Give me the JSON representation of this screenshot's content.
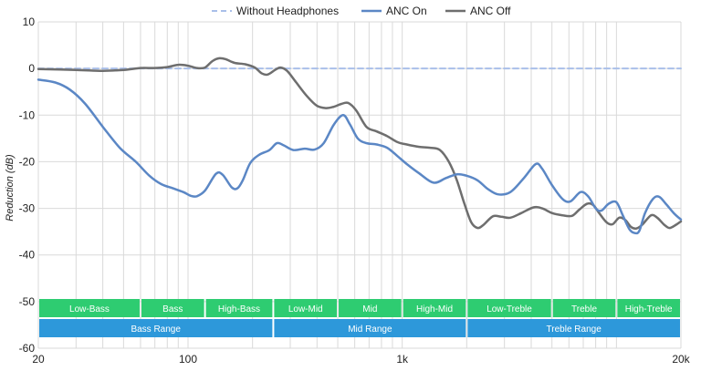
{
  "colors": {
    "without_headphones": "#a9bfe9",
    "anc_on": "#5b87c5",
    "anc_off": "#6e6e6e",
    "band_green": "#2ecc71",
    "band_blue": "#2d98da",
    "grid": "#d9d9d9",
    "band_text": "#ffffff"
  },
  "chart_data": {
    "type": "line",
    "title": "",
    "xlabel": "",
    "ylabel": "Reduction (dB)",
    "xscale": "log",
    "xlim": [
      20,
      20000
    ],
    "ylim": [
      -60,
      10
    ],
    "y_ticks": [
      10,
      0,
      -10,
      -20,
      -30,
      -40,
      -50,
      -60
    ],
    "x_tick_labels": [
      {
        "value": 20,
        "label": "20"
      },
      {
        "value": 100,
        "label": "100"
      },
      {
        "value": 1000,
        "label": "1k"
      },
      {
        "value": 20000,
        "label": "20k"
      }
    ],
    "grid": true,
    "legend_position": "top",
    "legend": [
      "Without Headphones",
      "ANC On",
      "ANC Off"
    ],
    "series": [
      {
        "name": "Without Headphones",
        "style": "dashed",
        "points": [
          [
            20,
            0
          ],
          [
            20000,
            0
          ]
        ]
      },
      {
        "name": "ANC On",
        "style": "solid",
        "points": [
          [
            20,
            -2.4
          ],
          [
            24,
            -3
          ],
          [
            28,
            -4.5
          ],
          [
            33,
            -7.5
          ],
          [
            40,
            -12.5
          ],
          [
            48,
            -17
          ],
          [
            57,
            -20
          ],
          [
            66,
            -23
          ],
          [
            75,
            -24.8
          ],
          [
            85,
            -25.7
          ],
          [
            95,
            -26.5
          ],
          [
            103,
            -27.3
          ],
          [
            110,
            -27.4
          ],
          [
            120,
            -26.2
          ],
          [
            135,
            -22.6
          ],
          [
            145,
            -22.8
          ],
          [
            160,
            -25.5
          ],
          [
            170,
            -25.7
          ],
          [
            180,
            -24
          ],
          [
            195,
            -20.3
          ],
          [
            215,
            -18.5
          ],
          [
            240,
            -17.5
          ],
          [
            260,
            -16
          ],
          [
            280,
            -16.5
          ],
          [
            310,
            -17.5
          ],
          [
            350,
            -17.2
          ],
          [
            390,
            -17.4
          ],
          [
            430,
            -16
          ],
          [
            480,
            -12
          ],
          [
            530,
            -10
          ],
          [
            570,
            -12
          ],
          [
            620,
            -15
          ],
          [
            680,
            -16
          ],
          [
            760,
            -16.3
          ],
          [
            850,
            -17
          ],
          [
            950,
            -18.8
          ],
          [
            1050,
            -20.5
          ],
          [
            1200,
            -22.5
          ],
          [
            1400,
            -24.5
          ],
          [
            1600,
            -23.5
          ],
          [
            1800,
            -22.7
          ],
          [
            2000,
            -23
          ],
          [
            2250,
            -24
          ],
          [
            2500,
            -25.8
          ],
          [
            2800,
            -27
          ],
          [
            3200,
            -26.5
          ],
          [
            3700,
            -23.5
          ],
          [
            4200,
            -20.5
          ],
          [
            4500,
            -21.5
          ],
          [
            5000,
            -25
          ],
          [
            5600,
            -28
          ],
          [
            6100,
            -28.5
          ],
          [
            6800,
            -26.5
          ],
          [
            7400,
            -27.5
          ],
          [
            8000,
            -30
          ],
          [
            8500,
            -30.5
          ],
          [
            9200,
            -29
          ],
          [
            10000,
            -28.7
          ],
          [
            10700,
            -31.5
          ],
          [
            11500,
            -34.5
          ],
          [
            12200,
            -35.3
          ],
          [
            12800,
            -34.8
          ],
          [
            13600,
            -31
          ],
          [
            14800,
            -28
          ],
          [
            15800,
            -27.5
          ],
          [
            17000,
            -29
          ],
          [
            18500,
            -31
          ],
          [
            20000,
            -32.4
          ]
        ]
      },
      {
        "name": "ANC Off",
        "style": "solid",
        "points": [
          [
            20,
            -0.1
          ],
          [
            30,
            -0.3
          ],
          [
            40,
            -0.5
          ],
          [
            50,
            -0.3
          ],
          [
            60,
            0.1
          ],
          [
            70,
            0.1
          ],
          [
            80,
            0.3
          ],
          [
            90,
            0.8
          ],
          [
            100,
            0.6
          ],
          [
            110,
            0.1
          ],
          [
            120,
            0.2
          ],
          [
            130,
            1.6
          ],
          [
            140,
            2.2
          ],
          [
            150,
            2
          ],
          [
            165,
            1.2
          ],
          [
            185,
            0.9
          ],
          [
            205,
            0.2
          ],
          [
            220,
            -1
          ],
          [
            235,
            -1.3
          ],
          [
            255,
            -0.3
          ],
          [
            270,
            0.2
          ],
          [
            290,
            -0.5
          ],
          [
            320,
            -3
          ],
          [
            360,
            -6
          ],
          [
            400,
            -8
          ],
          [
            440,
            -8.5
          ],
          [
            480,
            -8.2
          ],
          [
            520,
            -7.6
          ],
          [
            560,
            -7.4
          ],
          [
            610,
            -9
          ],
          [
            680,
            -12.5
          ],
          [
            760,
            -13.5
          ],
          [
            850,
            -14.5
          ],
          [
            950,
            -15.8
          ],
          [
            1050,
            -16.3
          ],
          [
            1200,
            -16.8
          ],
          [
            1350,
            -17
          ],
          [
            1500,
            -17.5
          ],
          [
            1650,
            -20
          ],
          [
            1800,
            -24
          ],
          [
            1950,
            -29
          ],
          [
            2100,
            -33
          ],
          [
            2250,
            -34.2
          ],
          [
            2400,
            -33.5
          ],
          [
            2650,
            -31.7
          ],
          [
            2900,
            -31.8
          ],
          [
            3200,
            -32
          ],
          [
            3600,
            -31
          ],
          [
            4100,
            -29.8
          ],
          [
            4500,
            -30
          ],
          [
            5000,
            -31
          ],
          [
            5600,
            -31.5
          ],
          [
            6200,
            -31.6
          ],
          [
            6700,
            -30.3
          ],
          [
            7300,
            -29
          ],
          [
            7800,
            -29.3
          ],
          [
            8300,
            -31
          ],
          [
            9000,
            -33
          ],
          [
            9600,
            -33.4
          ],
          [
            10300,
            -32
          ],
          [
            11000,
            -32.5
          ],
          [
            11700,
            -34
          ],
          [
            12400,
            -34.3
          ],
          [
            13200,
            -33.5
          ],
          [
            14500,
            -31.5
          ],
          [
            15500,
            -32
          ],
          [
            16700,
            -33.5
          ],
          [
            17700,
            -34.2
          ],
          [
            19000,
            -33.5
          ],
          [
            20000,
            -32.8
          ]
        ]
      }
    ],
    "frequency_bands": [
      {
        "label": "Low-Bass",
        "from": 20,
        "to": 60,
        "row": "top"
      },
      {
        "label": "Bass",
        "from": 60,
        "to": 120,
        "row": "top"
      },
      {
        "label": "High-Bass",
        "from": 120,
        "to": 250,
        "row": "top"
      },
      {
        "label": "Low-Mid",
        "from": 250,
        "to": 500,
        "row": "top"
      },
      {
        "label": "Mid",
        "from": 500,
        "to": 1000,
        "row": "top"
      },
      {
        "label": "High-Mid",
        "from": 1000,
        "to": 2000,
        "row": "top"
      },
      {
        "label": "Low-Treble",
        "from": 2000,
        "to": 5000,
        "row": "top"
      },
      {
        "label": "Treble",
        "from": 5000,
        "to": 10000,
        "row": "top"
      },
      {
        "label": "High-Treble",
        "from": 10000,
        "to": 20000,
        "row": "top"
      },
      {
        "label": "Bass Range",
        "from": 20,
        "to": 250,
        "row": "bottom"
      },
      {
        "label": "Mid Range",
        "from": 250,
        "to": 2000,
        "row": "bottom"
      },
      {
        "label": "Treble Range",
        "from": 2000,
        "to": 20000,
        "row": "bottom"
      }
    ]
  }
}
